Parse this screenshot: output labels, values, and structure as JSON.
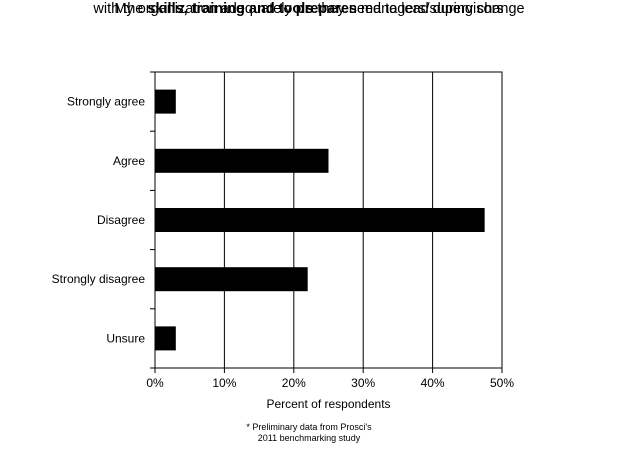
{
  "chart_data": {
    "type": "bar",
    "orientation": "horizontal",
    "title_line1": {
      "pre": "My organization adequately ",
      "bold": "prepares",
      "post": " managers/supervisors"
    },
    "title_line2": {
      "pre": "with the ",
      "bold": "skills, training and tools",
      "post": " they need to lead during change"
    },
    "categories": [
      "Strongly agree",
      "Agree",
      "Disagree",
      "Strongly disagree",
      "Unsure"
    ],
    "values": [
      3,
      25,
      47.5,
      22,
      3
    ],
    "xlabel": "Percent of respondents",
    "xlim": [
      0,
      50
    ],
    "xticks": [
      "0%",
      "10%",
      "20%",
      "30%",
      "40%",
      "50%"
    ],
    "grid": "vertical",
    "bar_color": "#000000"
  },
  "footnote": {
    "line1": "* Preliminary data from Prosci's",
    "line2": "2011 benchmarking study"
  }
}
